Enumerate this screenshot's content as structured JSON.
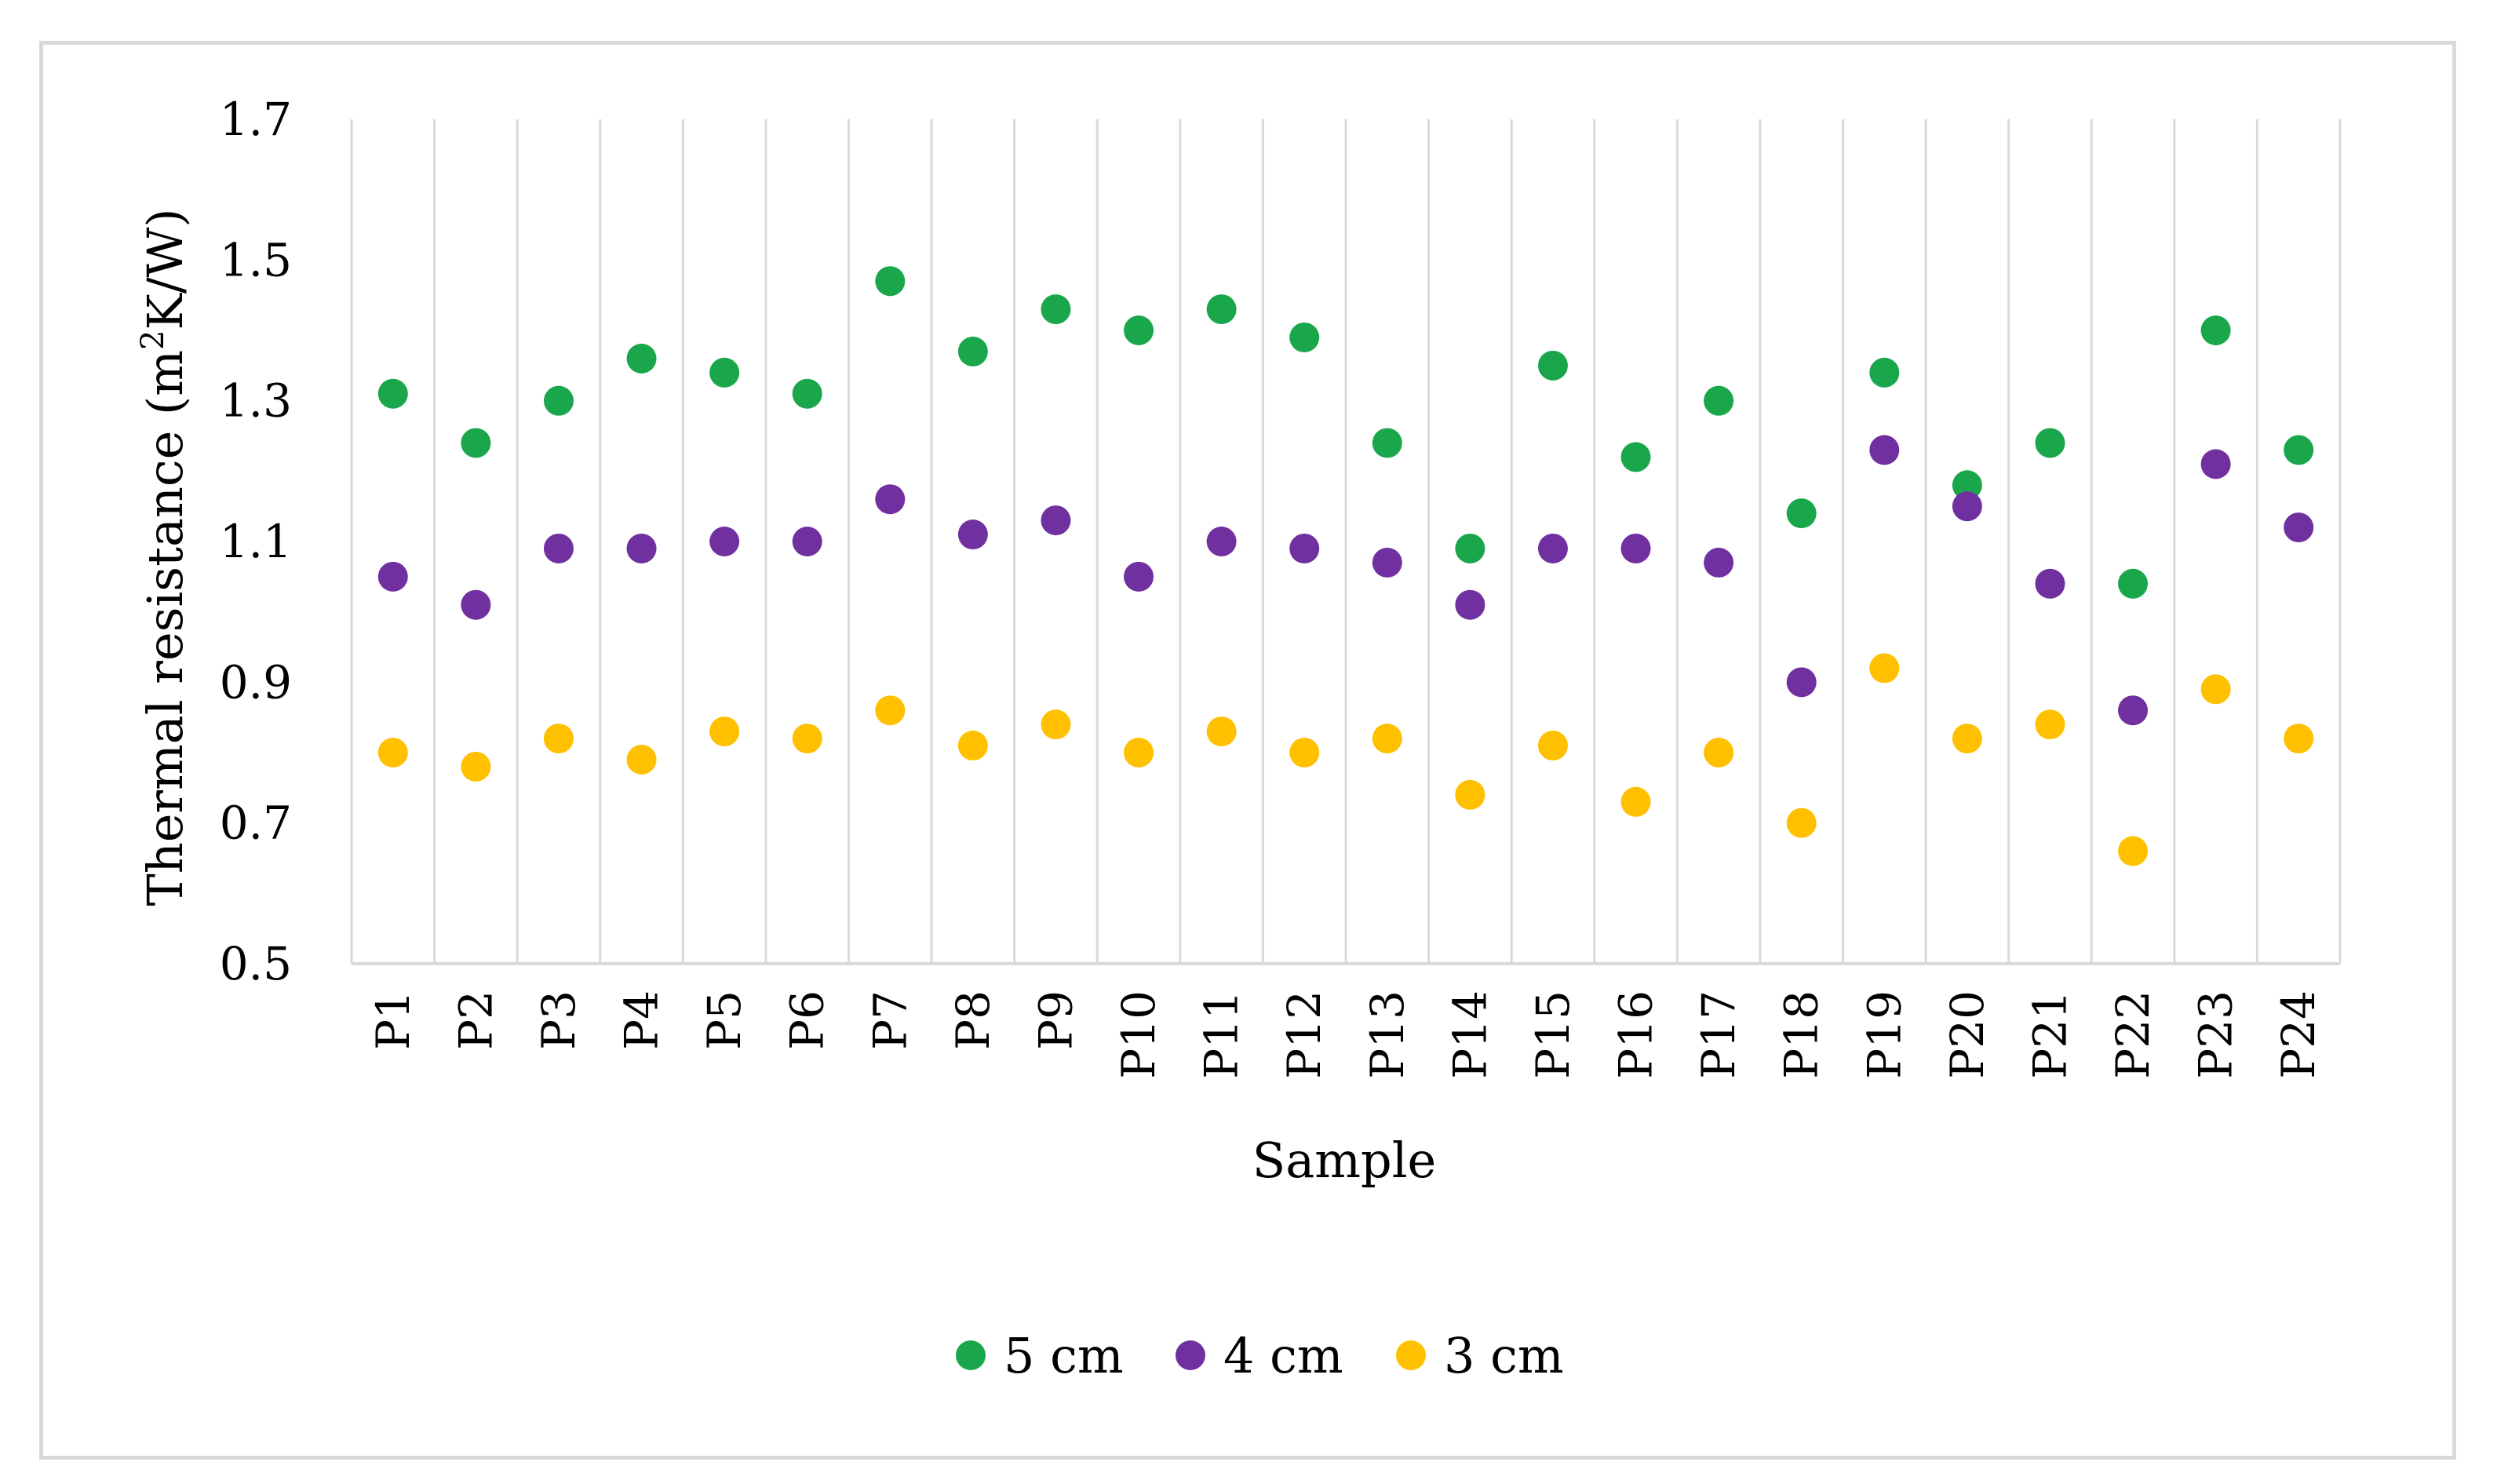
{
  "chart_data": {
    "type": "scatter",
    "title": "",
    "xlabel": "Sample",
    "ylabel": "Thermal resistance (m2K/W)",
    "ylabel_parts": {
      "prefix": "Thermal resistance (m",
      "superscript": "2",
      "suffix": "K/W)"
    },
    "ylim": [
      0.5,
      1.7
    ],
    "yticks": [
      0.5,
      0.7,
      0.9,
      1.1,
      1.3,
      1.5,
      1.7
    ],
    "ytick_labels": [
      "0.5",
      "0.7",
      "0.9",
      "1.1",
      "1.3",
      "1.5",
      "1.7"
    ],
    "categories": [
      "P1",
      "P2",
      "P3",
      "P4",
      "P5",
      "P6",
      "P7",
      "P8",
      "P9",
      "P10",
      "P11",
      "P12",
      "P13",
      "P14",
      "P15",
      "P16",
      "P17",
      "P18",
      "P19",
      "P20",
      "P21",
      "P22",
      "P23",
      "P24"
    ],
    "grid": "vertical",
    "legend_position": "bottom-center",
    "series": [
      {
        "name": "5 cm",
        "color": "#1aa64b",
        "values": [
          1.31,
          1.24,
          1.3,
          1.36,
          1.34,
          1.31,
          1.47,
          1.37,
          1.43,
          1.4,
          1.43,
          1.39,
          1.24,
          1.09,
          1.35,
          1.22,
          1.3,
          1.14,
          1.34,
          1.18,
          1.24,
          1.04,
          1.4,
          1.23
        ]
      },
      {
        "name": "4 cm",
        "color": "#7030a0",
        "values": [
          1.05,
          1.01,
          1.09,
          1.09,
          1.1,
          1.1,
          1.16,
          1.11,
          1.13,
          1.05,
          1.1,
          1.09,
          1.07,
          1.01,
          1.09,
          1.09,
          1.07,
          0.9,
          1.23,
          1.15,
          1.04,
          0.86,
          1.21,
          1.12
        ]
      },
      {
        "name": "3 cm",
        "color": "#ffc000",
        "values": [
          0.8,
          0.78,
          0.82,
          0.79,
          0.83,
          0.82,
          0.86,
          0.81,
          0.84,
          0.8,
          0.83,
          0.8,
          0.82,
          0.74,
          0.81,
          0.73,
          0.8,
          0.7,
          0.92,
          0.82,
          0.84,
          0.66,
          0.89,
          0.82
        ]
      }
    ]
  }
}
